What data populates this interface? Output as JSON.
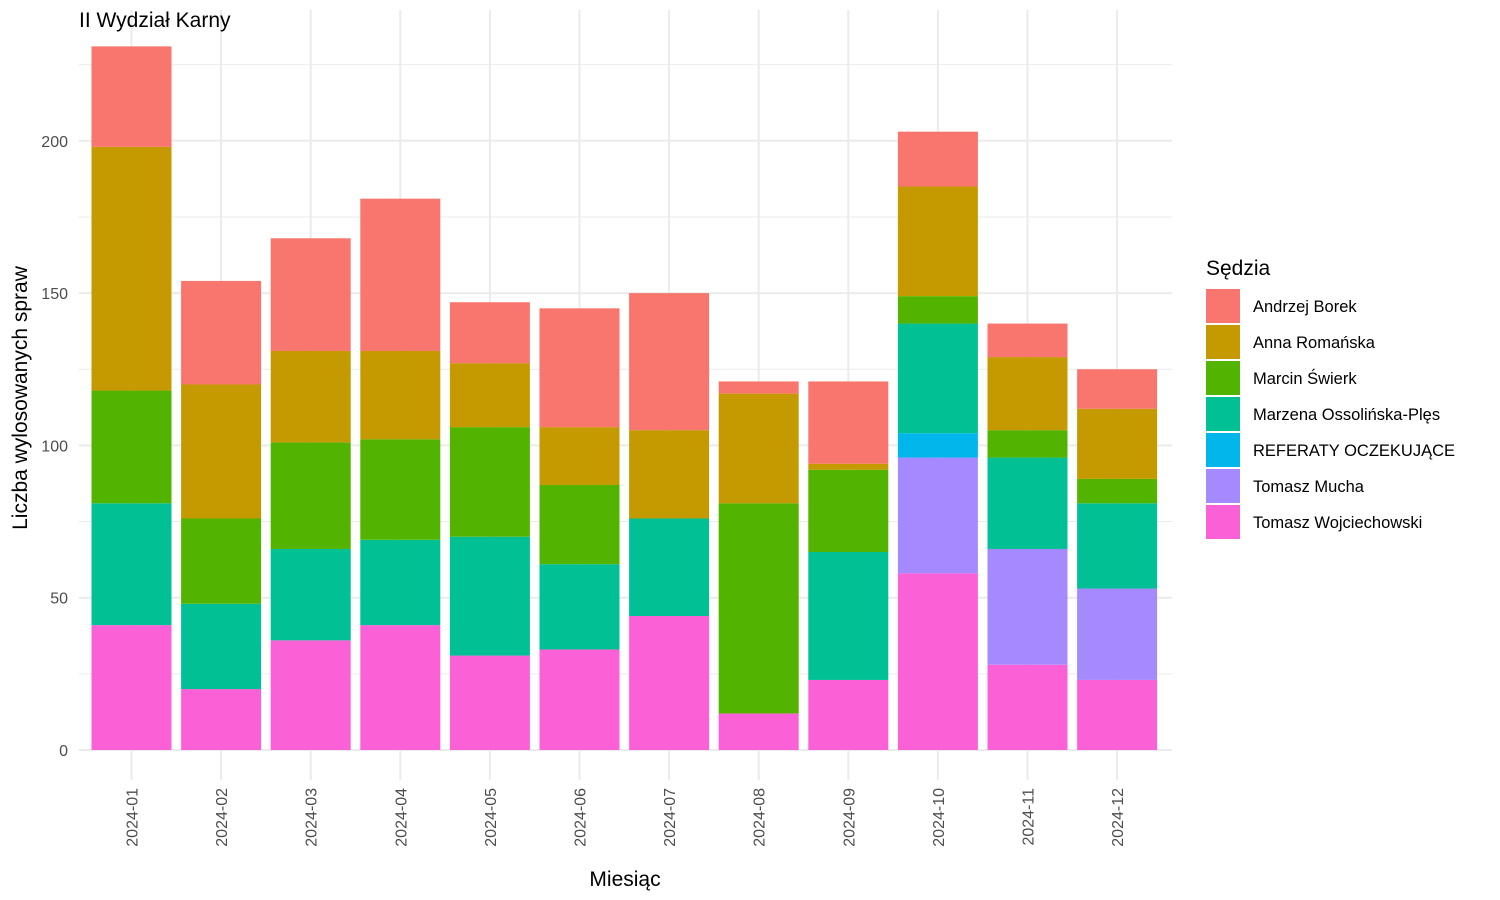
{
  "chart_data": {
    "type": "bar",
    "stacked": true,
    "title": "II Wydział Karny",
    "xlabel": "Miesiąc",
    "ylabel": "Liczba wylosowanych spraw",
    "ylim": [
      0,
      231
    ],
    "yticks": [
      0,
      50,
      100,
      150,
      200
    ],
    "grid": true,
    "legend_title": "Sędzia",
    "legend_position": "right",
    "categories": [
      "2024-01",
      "2024-02",
      "2024-03",
      "2024-04",
      "2024-05",
      "2024-06",
      "2024-07",
      "2024-08",
      "2024-09",
      "2024-10",
      "2024-11",
      "2024-12"
    ],
    "series": [
      {
        "name": "Tomasz Wojciechowski",
        "color": "#FB61D7",
        "values": [
          41,
          20,
          36,
          41,
          31,
          33,
          44,
          12,
          23,
          58,
          28,
          23
        ]
      },
      {
        "name": "Tomasz Mucha",
        "color": "#A58AFF",
        "values": [
          0,
          0,
          0,
          0,
          0,
          0,
          0,
          0,
          0,
          38,
          38,
          30
        ]
      },
      {
        "name": "REFERATY OCZEKUJĄCE",
        "color": "#00B6EB",
        "values": [
          0,
          0,
          0,
          0,
          0,
          0,
          0,
          0,
          0,
          8,
          0,
          0
        ]
      },
      {
        "name": "Marzena Ossolińska-Plęs",
        "color": "#00C094",
        "values": [
          40,
          28,
          30,
          28,
          39,
          28,
          32,
          0,
          42,
          36,
          30,
          28
        ]
      },
      {
        "name": "Marcin Świerk",
        "color": "#53B400",
        "values": [
          37,
          28,
          35,
          33,
          36,
          26,
          0,
          69,
          27,
          9,
          9,
          8
        ]
      },
      {
        "name": "Anna Romańska",
        "color": "#C49A00",
        "values": [
          80,
          44,
          30,
          29,
          21,
          19,
          29,
          36,
          2,
          36,
          24,
          23
        ]
      },
      {
        "name": "Andrzej Borek",
        "color": "#F8766D",
        "values": [
          33,
          34,
          37,
          50,
          20,
          39,
          45,
          4,
          27,
          18,
          11,
          13
        ]
      }
    ],
    "legend_order": [
      "Andrzej Borek",
      "Anna Romańska",
      "Marcin Świerk",
      "Marzena Ossolińska-Plęs",
      "REFERATY OCZEKUJĄCE",
      "Tomasz Mucha",
      "Tomasz Wojciechowski"
    ]
  }
}
